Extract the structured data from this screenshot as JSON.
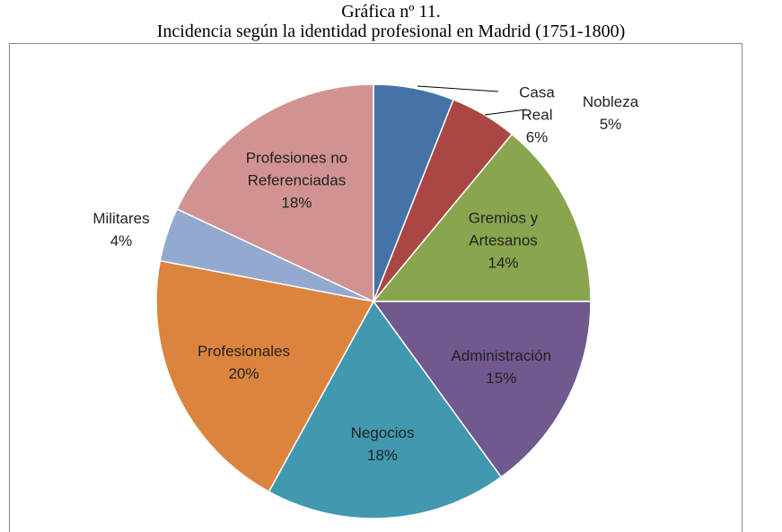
{
  "chart_data": {
    "type": "pie",
    "title": "Gráfica nº 11.",
    "subtitle": "Incidencia según la identidad profesional en Madrid (1751-1800)",
    "categories": [
      "Casa Real",
      "Nobleza",
      "Gremios y Artesanos",
      "Administración",
      "Negocios",
      "Profesionales",
      "Militares",
      "Profesiones no Referenciadas"
    ],
    "values": [
      6,
      5,
      14,
      15,
      18,
      20,
      4,
      18
    ],
    "value_labels": [
      "6%",
      "5%",
      "14%",
      "15%",
      "18%",
      "20%",
      "4%",
      "18%"
    ],
    "colors": [
      "#4572a7",
      "#aa4643",
      "#89a54e",
      "#71588f",
      "#4198af",
      "#db843d",
      "#93a9cf",
      "#d19392"
    ]
  }
}
